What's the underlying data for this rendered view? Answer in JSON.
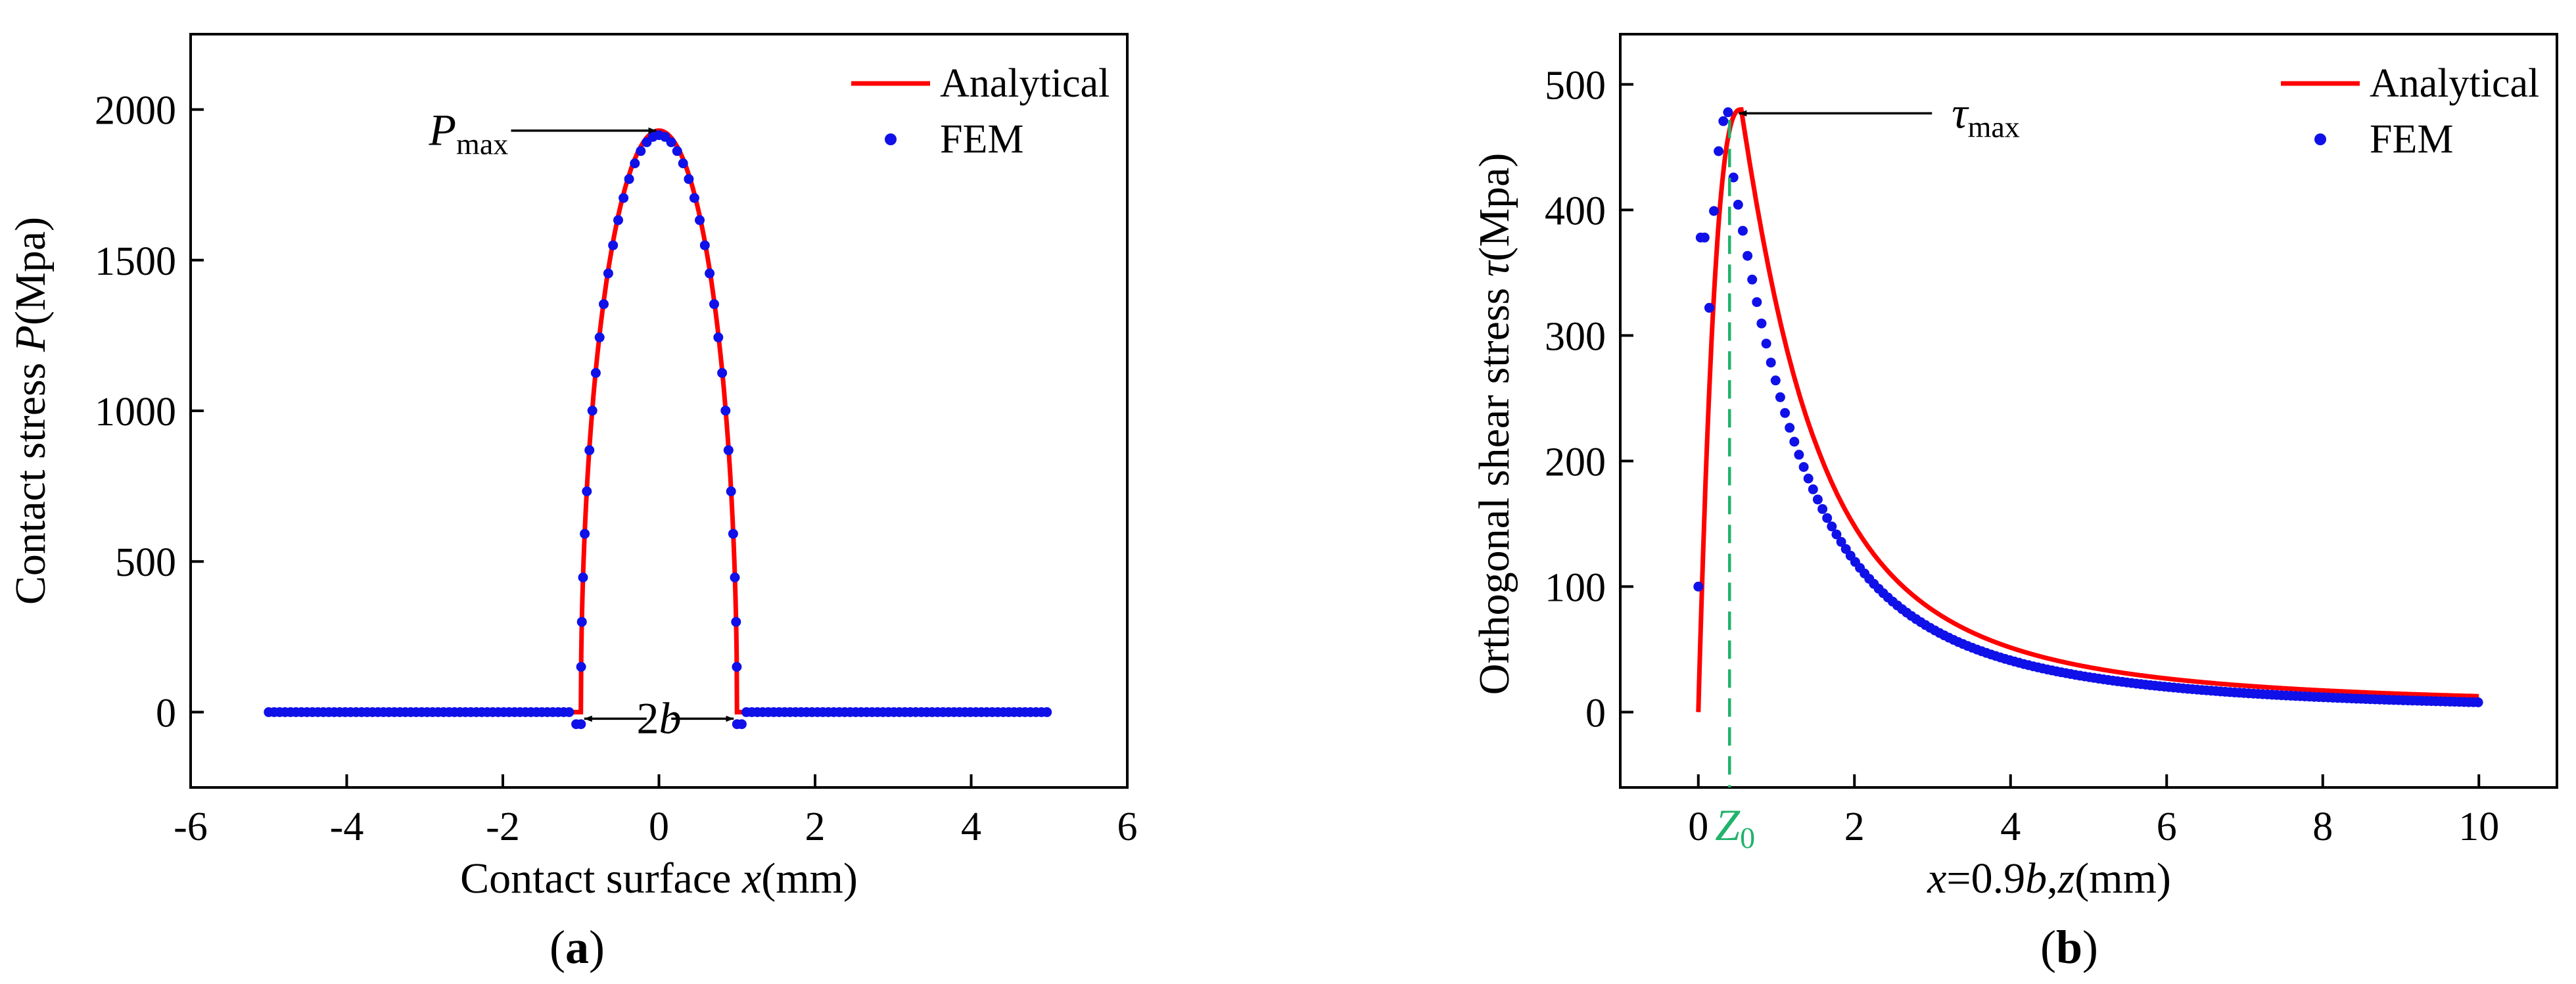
{
  "chart_data": [
    {
      "type": "line",
      "panel_label": "a",
      "xlabel": "Contact surface",
      "xlabel_var": "x",
      "xlabel_unit": "(mm)",
      "ylabel": "Contact stress",
      "ylabel_var": "P",
      "ylabel_unit": "(Mpa)",
      "xlim": [
        -6,
        6
      ],
      "ylim": [
        -250,
        2250
      ],
      "xticks": [
        -6,
        -4,
        -2,
        0,
        2,
        4,
        6
      ],
      "yticks": [
        0,
        500,
        1000,
        1500,
        2000
      ],
      "xtick_labels": [
        "-6",
        "-4",
        "-2",
        "0",
        "2",
        "4",
        "6"
      ],
      "ytick_labels": [
        "0",
        "500",
        "1000",
        "1500",
        "2000"
      ],
      "legend_position": "top-right",
      "series": [
        {
          "name": "Analytical",
          "style": "line",
          "color": "#ff0000",
          "half_width": 1.0,
          "peak": 1930,
          "x_range": [
            -5,
            5
          ]
        },
        {
          "name": "FEM",
          "style": "dots",
          "color": "#1010e8",
          "half_width": 1.0,
          "peak": 1915,
          "x_range": [
            -5,
            5
          ],
          "edge_dip": -40
        }
      ],
      "annotations": {
        "peak_label_main": "P",
        "peak_label_sub": "max",
        "width_label_prefix": "2",
        "width_label_var": "b",
        "peak_point": [
          0,
          1930
        ],
        "width_span": [
          -1,
          1
        ]
      }
    },
    {
      "type": "line",
      "panel_label": "b",
      "xlabel_var": "x",
      "xlabel_mid": "=0.9",
      "xlabel_var2": "b",
      "xlabel_sep": ",",
      "xlabel_var3": "z",
      "xlabel_unit": "(mm)",
      "ylabel": "Orthogonal shear stress",
      "ylabel_var": "τ",
      "ylabel_unit": "(Mpa)",
      "xlim": [
        -1,
        11
      ],
      "ylim": [
        -60,
        540
      ],
      "xticks": [
        0,
        2,
        4,
        6,
        8,
        10
      ],
      "yticks": [
        0,
        100,
        200,
        300,
        400,
        500
      ],
      "xtick_labels": [
        "0",
        "2",
        "4",
        "6",
        "8",
        "10"
      ],
      "ytick_labels": [
        "0",
        "100",
        "200",
        "300",
        "400",
        "500"
      ],
      "legend_position": "top-right",
      "series": [
        {
          "name": "Analytical",
          "style": "line",
          "color": "#ff0000",
          "peak_z": 0.55,
          "peak": 480,
          "z_range": [
            0,
            10
          ]
        },
        {
          "name": "FEM",
          "style": "dots",
          "color": "#1010e8",
          "peak_z": 0.4,
          "peak": 478,
          "z_range": [
            0,
            10
          ]
        }
      ],
      "annotations": {
        "peak_label_main": "τ",
        "peak_label_sub": "max",
        "peak_point": [
          0.4,
          478
        ],
        "z0_label_main": "Z",
        "z0_label_sub": "0",
        "z0_value": 0.4,
        "z0_color": "#21b26b"
      }
    }
  ]
}
